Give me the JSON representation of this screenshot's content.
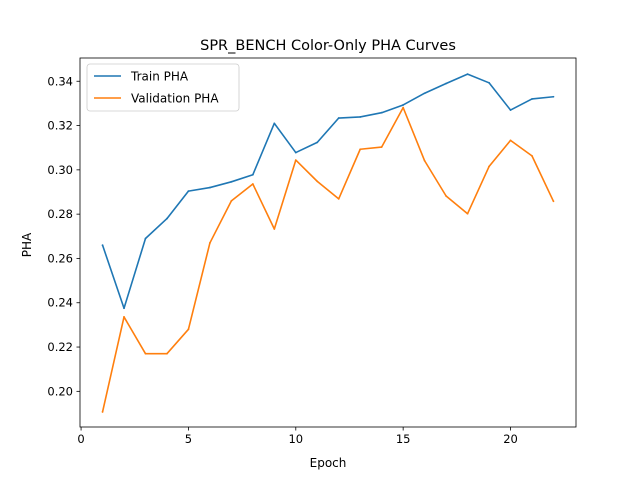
{
  "chart_data": {
    "type": "line",
    "title": "SPR_BENCH Color-Only PHA Curves",
    "xlabel": "Epoch",
    "ylabel": "PHA",
    "xlim": [
      -0.05,
      23.05
    ],
    "ylim": [
      0.1839,
      0.3505
    ],
    "xticks": [
      0,
      5,
      10,
      15,
      20
    ],
    "yticks": [
      0.2,
      0.22,
      0.24,
      0.26,
      0.28,
      0.3,
      0.32,
      0.34
    ],
    "ytick_labels": [
      "0.20",
      "0.22",
      "0.24",
      "0.26",
      "0.28",
      "0.30",
      "0.32",
      "0.34"
    ],
    "grid": false,
    "legend_position": "upper-left",
    "x": [
      1,
      2,
      3,
      4,
      5,
      6,
      7,
      8,
      9,
      10,
      11,
      12,
      13,
      14,
      15,
      16,
      17,
      18,
      19,
      20,
      21,
      22
    ],
    "series": [
      {
        "name": "Train PHA",
        "color": "#1f77b4",
        "values": [
          0.266,
          0.2375,
          0.269,
          0.278,
          0.2904,
          0.292,
          0.2946,
          0.2978,
          0.321,
          0.3078,
          0.3124,
          0.3234,
          0.3239,
          0.3258,
          0.3293,
          0.3346,
          0.339,
          0.3432,
          0.3393,
          0.327,
          0.332,
          0.333
        ]
      },
      {
        "name": "Validation PHA",
        "color": "#ff7f0e",
        "values": [
          0.1907,
          0.2336,
          0.217,
          0.217,
          0.228,
          0.267,
          0.286,
          0.2936,
          0.2733,
          0.3044,
          0.2948,
          0.2869,
          0.3093,
          0.3103,
          0.3281,
          0.3041,
          0.2882,
          0.2802,
          0.3015,
          0.3133,
          0.3063,
          0.2858
        ]
      }
    ]
  }
}
